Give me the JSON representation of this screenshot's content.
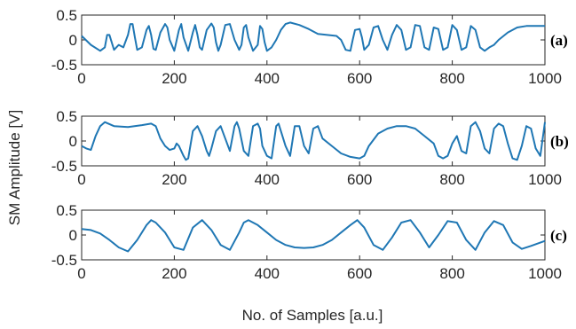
{
  "chart_data": {
    "type": "line",
    "ylabel": "SM Amplitude  [V]",
    "xlabel": "No. of Samples [a.u.]",
    "xlim": [
      0,
      1000
    ],
    "x_ticks": [
      "0",
      "200",
      "400",
      "600",
      "800",
      "1000"
    ],
    "y_ticks": [
      "0.5",
      "0",
      "-0.5"
    ],
    "line_color": "#1f77b4",
    "grid": false,
    "panels": [
      {
        "label": "(a)",
        "ylim": [
          -0.5,
          0.5
        ],
        "x": [
          0,
          20,
          40,
          50,
          55,
          60,
          65,
          70,
          80,
          90,
          100,
          105,
          110,
          115,
          120,
          130,
          140,
          145,
          150,
          155,
          160,
          170,
          180,
          185,
          190,
          200,
          210,
          215,
          220,
          230,
          240,
          245,
          250,
          255,
          260,
          270,
          280,
          285,
          290,
          295,
          300,
          310,
          320,
          330,
          340,
          345,
          350,
          355,
          360,
          370,
          380,
          385,
          390,
          395,
          400,
          410,
          420,
          430,
          440,
          450,
          470,
          490,
          510,
          530,
          550,
          560,
          570,
          580,
          585,
          590,
          600,
          605,
          610,
          620,
          630,
          640,
          650,
          660,
          670,
          680,
          690,
          700,
          710,
          720,
          730,
          740,
          750,
          760,
          770,
          780,
          790,
          800,
          810,
          820,
          830,
          840,
          850,
          860,
          870,
          880,
          890,
          900,
          920,
          940,
          960,
          980,
          1000
        ],
        "y": [
          0.08,
          -0.1,
          -0.22,
          -0.15,
          0.1,
          0.1,
          -0.05,
          -0.2,
          -0.1,
          -0.15,
          0.1,
          0.32,
          0.32,
          0.05,
          -0.2,
          -0.15,
          0.2,
          0.28,
          0.1,
          -0.18,
          -0.2,
          0.15,
          0.32,
          0.25,
          0.0,
          -0.22,
          0.2,
          0.32,
          0.05,
          -0.22,
          0.15,
          0.3,
          0.1,
          -0.15,
          -0.2,
          0.2,
          0.33,
          0.25,
          -0.05,
          -0.22,
          -0.1,
          0.3,
          0.32,
          0.0,
          -0.2,
          -0.1,
          0.25,
          0.3,
          0.05,
          -0.22,
          -0.1,
          0.28,
          0.22,
          -0.05,
          -0.22,
          -0.15,
          0.0,
          0.2,
          0.32,
          0.35,
          0.3,
          0.22,
          0.12,
          0.1,
          0.08,
          0.0,
          -0.2,
          -0.22,
          0.0,
          0.2,
          0.22,
          0.05,
          -0.2,
          -0.1,
          0.25,
          0.28,
          0.0,
          -0.2,
          0.1,
          0.3,
          0.2,
          -0.2,
          -0.15,
          0.3,
          0.28,
          -0.15,
          -0.2,
          0.25,
          0.22,
          -0.2,
          -0.15,
          0.3,
          0.2,
          -0.2,
          -0.15,
          0.28,
          0.2,
          -0.15,
          -0.22,
          -0.15,
          -0.1,
          0.0,
          0.15,
          0.25,
          0.28,
          0.28,
          0.28
        ]
      },
      {
        "label": "(b)",
        "ylim": [
          -0.5,
          0.5
        ],
        "x": [
          0,
          10,
          20,
          30,
          40,
          50,
          70,
          100,
          130,
          150,
          160,
          170,
          180,
          190,
          200,
          205,
          210,
          220,
          225,
          230,
          240,
          250,
          260,
          270,
          275,
          280,
          290,
          300,
          310,
          320,
          330,
          335,
          340,
          350,
          360,
          370,
          380,
          385,
          390,
          400,
          410,
          420,
          425,
          430,
          440,
          450,
          460,
          470,
          480,
          490,
          500,
          510,
          520,
          540,
          560,
          580,
          600,
          610,
          620,
          640,
          660,
          680,
          700,
          720,
          740,
          760,
          770,
          780,
          790,
          800,
          810,
          820,
          830,
          840,
          850,
          860,
          870,
          880,
          890,
          900,
          910,
          920,
          930,
          940,
          950,
          960,
          970,
          980,
          990,
          1000
        ],
        "y": [
          -0.1,
          -0.15,
          -0.18,
          0.1,
          0.3,
          0.38,
          0.3,
          0.28,
          0.32,
          0.35,
          0.3,
          0.05,
          -0.1,
          -0.18,
          -0.15,
          -0.05,
          -0.1,
          -0.3,
          -0.38,
          -0.35,
          0.2,
          0.3,
          0.1,
          -0.2,
          -0.3,
          -0.15,
          0.2,
          0.3,
          0.05,
          -0.2,
          0.3,
          0.38,
          0.25,
          -0.2,
          -0.3,
          0.3,
          0.35,
          0.25,
          -0.1,
          -0.3,
          -0.35,
          0.3,
          0.35,
          0.2,
          -0.1,
          -0.3,
          0.3,
          0.3,
          -0.1,
          -0.25,
          0.25,
          0.3,
          0.05,
          -0.1,
          -0.25,
          -0.32,
          -0.35,
          -0.3,
          -0.1,
          0.15,
          0.25,
          0.3,
          0.3,
          0.25,
          0.1,
          -0.05,
          -0.3,
          -0.35,
          -0.3,
          -0.05,
          0.1,
          -0.2,
          -0.25,
          0.3,
          0.38,
          0.2,
          -0.15,
          -0.25,
          0.25,
          0.35,
          0.3,
          -0.05,
          -0.35,
          -0.38,
          -0.1,
          0.3,
          0.25,
          -0.15,
          -0.3,
          0.38
        ]
      },
      {
        "label": "(c)",
        "ylim": [
          -0.5,
          0.5
        ],
        "x": [
          0,
          20,
          40,
          60,
          80,
          100,
          120,
          140,
          150,
          160,
          180,
          200,
          220,
          240,
          260,
          280,
          300,
          320,
          340,
          350,
          360,
          380,
          400,
          420,
          440,
          460,
          480,
          500,
          520,
          540,
          560,
          580,
          595,
          610,
          630,
          650,
          670,
          690,
          710,
          730,
          750,
          770,
          790,
          810,
          830,
          850,
          870,
          890,
          910,
          930,
          950,
          970,
          1000
        ],
        "y": [
          0.12,
          0.1,
          0.03,
          -0.1,
          -0.25,
          -0.33,
          -0.1,
          0.2,
          0.3,
          0.25,
          0.05,
          -0.25,
          -0.3,
          0.15,
          0.3,
          0.1,
          -0.2,
          -0.3,
          0.05,
          0.25,
          0.3,
          0.2,
          0.05,
          -0.1,
          -0.2,
          -0.25,
          -0.26,
          -0.25,
          -0.2,
          -0.1,
          0.05,
          0.2,
          0.3,
          0.15,
          -0.2,
          -0.3,
          -0.05,
          0.25,
          0.3,
          0.05,
          -0.25,
          0.0,
          0.28,
          0.25,
          -0.1,
          -0.3,
          0.05,
          0.28,
          0.2,
          -0.15,
          -0.28,
          -0.22,
          -0.12
        ]
      }
    ]
  }
}
